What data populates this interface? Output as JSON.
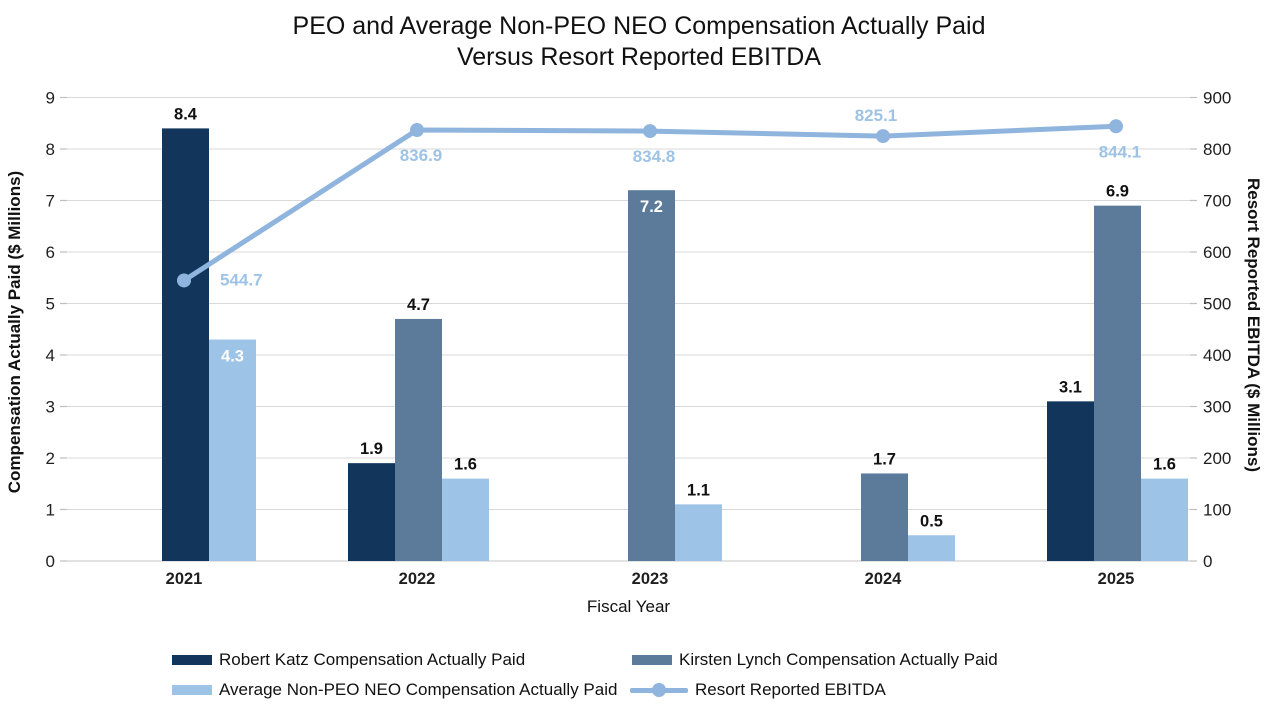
{
  "chart_data": {
    "type": "combo-bar-line",
    "title": "PEO and Average Non-PEO NEO Compensation Actually Paid Versus Resort Reported EBITDA",
    "title_lines": [
      "PEO and Average Non-PEO NEO Compensation Actually Paid",
      "Versus Resort Reported EBITDA"
    ],
    "categories": [
      "2021",
      "2022",
      "2023",
      "2024",
      "2025"
    ],
    "x_axis": {
      "title": "Fiscal Year"
    },
    "left_axis": {
      "title": "Compensation Actually Paid ($ Millions)",
      "min": 0,
      "max": 9,
      "step": 1
    },
    "right_axis": {
      "title": "Resort Reported EBITDA ($ Millions)",
      "min": 0,
      "max": 900,
      "step": 100
    },
    "grid": "horizontal",
    "legend_position": "bottom",
    "bar_series": [
      {
        "name": "Robert Katz Compensation Actually Paid",
        "color": "#12355C",
        "values": [
          8.4,
          1.9,
          null,
          null,
          3.1
        ],
        "label_inside": [
          false,
          false,
          null,
          null,
          false
        ]
      },
      {
        "name": "Kirsten Lynch Compensation Actually Paid",
        "color": "#5C7B9B",
        "values": [
          null,
          4.7,
          7.2,
          1.7,
          6.9
        ],
        "label_inside": [
          null,
          false,
          true,
          false,
          false
        ]
      },
      {
        "name": "Average Non-PEO NEO Compensation Actually Paid",
        "color": "#9DC3E6",
        "values": [
          4.3,
          1.6,
          1.1,
          0.5,
          1.6
        ],
        "label_inside": [
          true,
          false,
          false,
          false,
          false
        ]
      }
    ],
    "line_series": {
      "name": "Resort Reported EBITDA",
      "color": "#8FB4DE",
      "label_color": "#9EC3E5",
      "values": [
        544.7,
        836.9,
        834.8,
        825.1,
        844.1
      ],
      "label_positions": [
        "right",
        "below",
        "below",
        "above",
        "below"
      ]
    },
    "colors": {
      "gridline": "#D9D9D9",
      "tick": "#BFBFBF",
      "axis_text": "#1F1F1F",
      "bar_label": "#111111",
      "bar_label_inside": "#FFFFFF"
    }
  }
}
